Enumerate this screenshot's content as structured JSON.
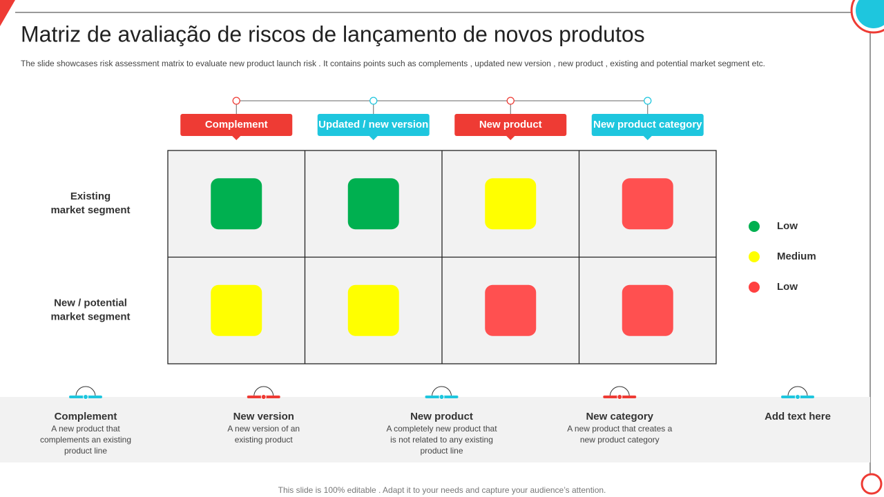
{
  "header": {
    "title": "Matriz de avaliação de riscos de lançamento de novos produtos",
    "subtitle": "The slide showcases risk assessment matrix to evaluate new product launch risk . It contains points such as complements , updated new version , new product , existing and potential market segment etc."
  },
  "matrix": {
    "columns": [
      {
        "label": "Complement",
        "color": "#ee3b34"
      },
      {
        "label": "Updated / new version",
        "color": "#1ec6de"
      },
      {
        "label": "New product",
        "color": "#ee3b34"
      },
      {
        "label": "New product category",
        "color": "#1ec6de"
      }
    ],
    "rows": [
      {
        "label": [
          "Existing",
          "market segment"
        ],
        "cells": [
          "#00b050",
          "#00b050",
          "#ffff00",
          "#ff5050"
        ]
      },
      {
        "label": [
          "New / potential",
          "market segment"
        ],
        "cells": [
          "#ffff00",
          "#ffff00",
          "#ff5050",
          "#ff5050"
        ]
      }
    ]
  },
  "legend": [
    {
      "label": "Low",
      "color": "#00b050"
    },
    {
      "label": "Medium",
      "color": "#ffff00"
    },
    {
      "label": "Low",
      "color": "#ff4040"
    }
  ],
  "items": [
    {
      "title": "Complement",
      "text": [
        "A new product that",
        "complements an existing",
        "product line"
      ],
      "color": "#1ec6de"
    },
    {
      "title": "New version",
      "text": [
        "A new version  of an",
        "existing product"
      ],
      "color": "#ee3b34"
    },
    {
      "title": "New product",
      "text": [
        "A completely new product that",
        "is not related to any existing",
        "product line"
      ],
      "color": "#1ec6de"
    },
    {
      "title": "New category",
      "text": [
        "A new product that creates a",
        "new product category"
      ],
      "color": "#ee3b34"
    },
    {
      "title": "Add text here",
      "text": [],
      "color": "#1ec6de"
    }
  ],
  "footer": "This slide is 100% editable . Adapt it to your needs and capture your audience’s attention."
}
